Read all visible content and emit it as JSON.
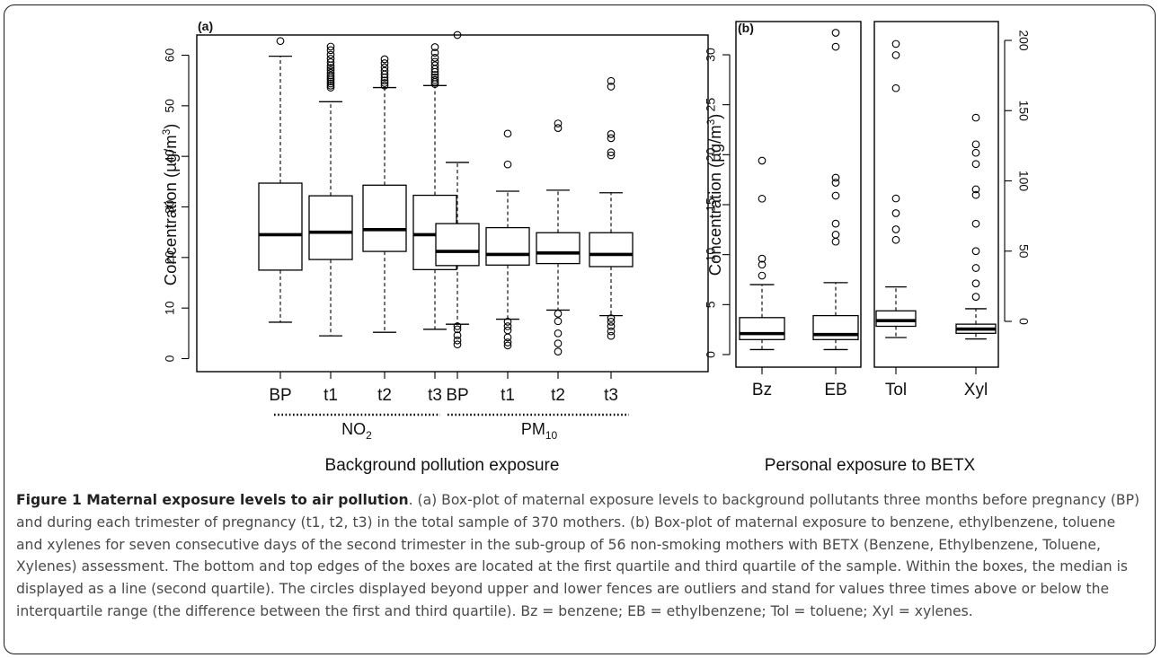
{
  "figure": {
    "caption_title": "Figure 1 Maternal exposure levels to air pollution",
    "caption_body": ". (a) Box-plot of maternal exposure levels to background pollutants three months before pregnancy (BP) and during each trimester of pregnancy (t1, t2, t3) in the total sample of 370 mothers. (b) Box-plot of maternal exposure to benzene, ethylbenzene, toluene and xylenes for seven consecutive days of the second trimester in the sub-group of 56 non-smoking mothers with BETX (Benzene, Ethylbenzene, Toluene, Xylenes) assessment. The bottom and top edges of the boxes are located at the first quartile and third quartile of the sample. Within the boxes, the median is displayed as a line (second quartile). The circles displayed beyond upper and lower fences are outliers and stand for values three times above or below the interquartile range (the difference between the first and third quartile). Bz = benzene; EB = ethylbenzene; Tol = toluene; Xyl = xylenes."
  },
  "chart_data": [
    {
      "type": "boxplot",
      "panel_label": "(a)",
      "ylabel": "Concentration (µg/m³)",
      "ylabel_main": "Concentration (µg/m",
      "ylabel_sup": "3",
      "ylabel_end": ")",
      "ylim": [
        0,
        60
      ],
      "yticks": [
        0,
        10,
        20,
        30,
        40,
        50,
        60
      ],
      "xlabel": "Background pollution exposure",
      "groups": [
        {
          "name": "NO2",
          "label_main": "NO",
          "label_sub": "2",
          "categories": [
            "BP",
            "t1",
            "t2",
            "t3"
          ]
        },
        {
          "name": "PM10",
          "label_main": "PM",
          "label_sub": "10",
          "categories": [
            "BP",
            "t1",
            "t2",
            "t3"
          ]
        }
      ],
      "categories": [
        "BP",
        "t1",
        "t2",
        "t3",
        "BP",
        "t1",
        "t2",
        "t3"
      ],
      "boxes": [
        {
          "group": "NO2",
          "label": "BP",
          "whisker_low": 7.2,
          "q1": 17.5,
          "median": 24.5,
          "q3": 34.7,
          "whisker_high": 59.8,
          "outliers": [
            62.8
          ]
        },
        {
          "group": "NO2",
          "label": "t1",
          "whisker_low": 4.5,
          "q1": 19.6,
          "median": 25.0,
          "q3": 32.2,
          "whisker_high": 50.8,
          "outliers": [
            53.6,
            54.0,
            54.4,
            54.8,
            55.2,
            55.6,
            56.0,
            56.5,
            57.0,
            57.5,
            58.0,
            58.6,
            59.3,
            60.1,
            61.0,
            61.7
          ]
        },
        {
          "group": "NO2",
          "label": "t2",
          "whisker_low": 5.2,
          "q1": 21.2,
          "median": 25.5,
          "q3": 34.3,
          "whisker_high": 53.6,
          "outliers": [
            54.0,
            54.5,
            55.0,
            55.6,
            56.2,
            56.9,
            57.6,
            58.4,
            59.2
          ]
        },
        {
          "group": "NO2",
          "label": "t3",
          "whisker_low": 5.8,
          "q1": 17.6,
          "median": 24.5,
          "q3": 32.3,
          "whisker_high": 54.0,
          "outliers": [
            54.3,
            54.7,
            55.1,
            55.6,
            56.1,
            56.7,
            57.3,
            58.0,
            58.7,
            59.5,
            60.5,
            61.6
          ]
        },
        {
          "group": "PM10",
          "label": "BP",
          "whisker_low": 6.8,
          "q1": 18.4,
          "median": 21.2,
          "q3": 26.7,
          "whisker_high": 38.8,
          "outliers": [
            6.4,
            5.8,
            4.6,
            3.6,
            2.8,
            64.0
          ]
        },
        {
          "group": "PM10",
          "label": "t1",
          "whisker_low": 7.8,
          "q1": 18.5,
          "median": 20.6,
          "q3": 25.9,
          "whisker_high": 33.1,
          "outliers": [
            7.3,
            6.4,
            5.6,
            4.2,
            3.2,
            2.6,
            38.4,
            44.5
          ]
        },
        {
          "group": "PM10",
          "label": "t2",
          "whisker_low": 9.6,
          "q1": 18.8,
          "median": 20.9,
          "q3": 24.9,
          "whisker_high": 33.3,
          "outliers": [
            8.9,
            7.4,
            5.0,
            3.0,
            1.4,
            45.6,
            46.5
          ]
        },
        {
          "group": "PM10",
          "label": "t3",
          "whisker_low": 8.5,
          "q1": 18.2,
          "median": 20.6,
          "q3": 24.9,
          "whisker_high": 32.8,
          "outliers": [
            8.0,
            7.3,
            6.4,
            5.4,
            4.5,
            40.2,
            40.8,
            43.6,
            44.4,
            53.8,
            54.9
          ]
        }
      ]
    },
    {
      "type": "boxplot",
      "panel_label": "(b)",
      "ylabel": "Concentration (µg/m³)",
      "ylabel_main": "Concentration (µg/m",
      "ylabel_sup": "3",
      "ylabel_end": ")",
      "xlabel": "Personal exposure to BETX",
      "sub_panels": [
        {
          "axis": "left",
          "ylim": [
            0,
            32
          ],
          "yticks": [
            0,
            5,
            10,
            15,
            20,
            25,
            30
          ],
          "categories": [
            "Bz",
            "EB"
          ],
          "boxes": [
            {
              "label": "Bz",
              "whisker_low": 0.5,
              "q1": 1.5,
              "median": 2.1,
              "q3": 3.7,
              "whisker_high": 7.0,
              "outliers": [
                7.9,
                9.0,
                9.6,
                15.6,
                19.4
              ]
            },
            {
              "label": "EB",
              "whisker_low": 0.5,
              "q1": 1.5,
              "median": 2.0,
              "q3": 3.9,
              "whisker_high": 7.2,
              "outliers": [
                11.3,
                12.0,
                13.1,
                15.9,
                17.2,
                17.7,
                30.8,
                32.2
              ]
            }
          ]
        },
        {
          "axis": "right",
          "ylim": [
            -20,
            205
          ],
          "yticks": [
            0,
            50,
            100,
            150,
            200
          ],
          "categories": [
            "Tol",
            "Xyl"
          ],
          "boxes": [
            {
              "label": "Tol",
              "whisker_low": -11.5,
              "q1": -3.5,
              "median": 0.5,
              "q3": 7.5,
              "whisker_high": 24.5,
              "outliers": [
                58.0,
                65.5,
                77.0,
                87.5,
                166.0,
                189.5,
                197.5
              ]
            },
            {
              "label": "Xyl",
              "whisker_low": -12.5,
              "q1": -8.5,
              "median": -5.5,
              "q3": -2.0,
              "whisker_high": 9.0,
              "outliers": [
                17.5,
                27.0,
                38.0,
                50.0,
                69.5,
                90.0,
                94.0,
                112.0,
                120.0,
                126.0,
                145.0
              ]
            }
          ]
        }
      ]
    }
  ]
}
